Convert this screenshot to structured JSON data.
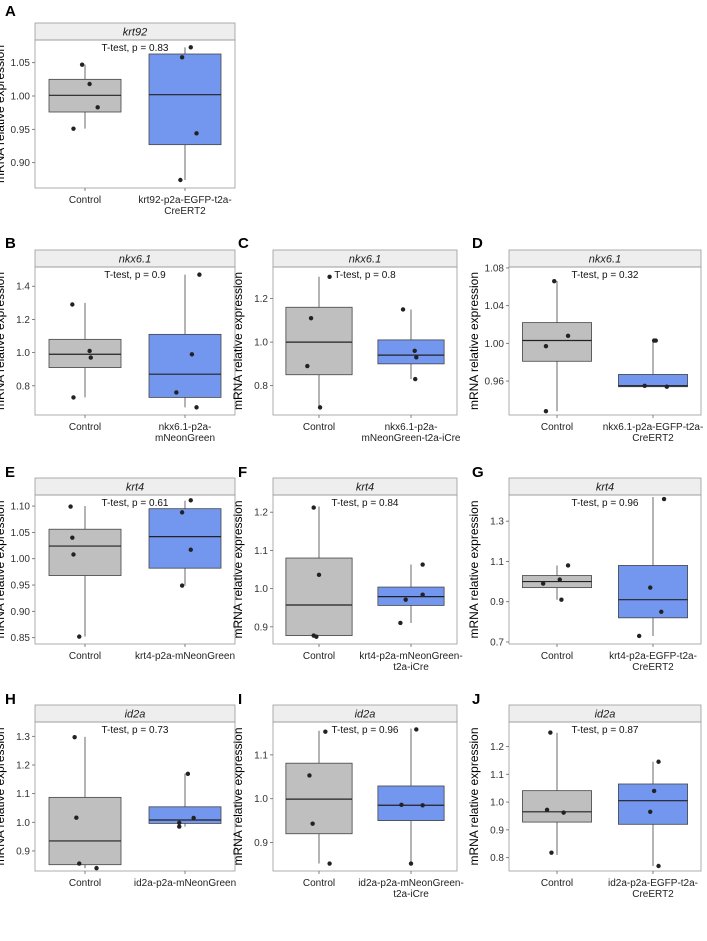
{
  "figure": {
    "colors": {
      "control": "#bfbfbf",
      "transgenic": "#7396ee"
    }
  },
  "chart_data": [
    {
      "panel": "A",
      "type": "box",
      "title": "krt92",
      "annotation": "T-test, p = 0.83",
      "ylabel": "mRNA relative expression",
      "ylim": [
        0.862,
        1.084
      ],
      "yticks": [
        0.9,
        0.95,
        1.0,
        1.05
      ],
      "ytick_labels": [
        "0.90",
        "0.95",
        "1.00",
        "1.05"
      ],
      "categories": [
        "Control",
        "krt92-p2a-EGFP-t2a-\nCreERT2"
      ],
      "boxes": [
        {
          "whislo": 0.951,
          "q1": 0.976,
          "med": 1.001,
          "q3": 1.025,
          "whishi": 1.047
        },
        {
          "whislo": 0.874,
          "q1": 0.927,
          "med": 1.002,
          "q3": 1.063,
          "whishi": 1.073
        }
      ],
      "points": [
        [
          [
            -0.05,
            1.047
          ],
          [
            0.08,
            1.018
          ],
          [
            0.22,
            0.983
          ],
          [
            -0.2,
            0.951
          ]
        ],
        [
          [
            0.1,
            1.073
          ],
          [
            -0.05,
            1.058
          ],
          [
            0.2,
            0.944
          ],
          [
            -0.08,
            0.874
          ]
        ]
      ]
    },
    {
      "panel": "B",
      "type": "box",
      "title": "nkx6.1",
      "annotation": "T-test, p = 0.9",
      "ylabel": "mRNA relative expression",
      "ylim": [
        0.624,
        1.516
      ],
      "yticks": [
        0.8,
        1.0,
        1.2,
        1.4
      ],
      "ytick_labels": [
        "0.8",
        "1.0",
        "1.2",
        "1.4"
      ],
      "categories": [
        "Control",
        "nkx6.1-p2a-\nmNeonGreen"
      ],
      "boxes": [
        {
          "whislo": 0.73,
          "q1": 0.91,
          "med": 0.99,
          "q3": 1.08,
          "whishi": 1.3
        },
        {
          "whislo": 0.67,
          "q1": 0.73,
          "med": 0.87,
          "q3": 1.11,
          "whishi": 1.47
        }
      ],
      "points": [
        [
          [
            -0.22,
            1.29
          ],
          [
            0.08,
            1.01
          ],
          [
            0.1,
            0.97
          ],
          [
            -0.2,
            0.73
          ]
        ],
        [
          [
            0.25,
            1.47
          ],
          [
            0.12,
            0.99
          ],
          [
            -0.15,
            0.76
          ],
          [
            0.2,
            0.67
          ]
        ]
      ]
    },
    {
      "panel": "C",
      "type": "box",
      "title": "nkx6.1",
      "annotation": "T-test, p = 0.8",
      "ylabel": "mRNA relative expression",
      "ylim": [
        0.665,
        1.345
      ],
      "yticks": [
        0.8,
        1.0,
        1.2
      ],
      "ytick_labels": [
        "0.8",
        "1.0",
        "1.2"
      ],
      "categories": [
        "Control",
        "nkx6.1-p2a-\nmNeonGreen-t2a-iCre"
      ],
      "boxes": [
        {
          "whislo": 0.7,
          "q1": 0.85,
          "med": 1.0,
          "q3": 1.16,
          "whishi": 1.3
        },
        {
          "whislo": 0.83,
          "q1": 0.9,
          "med": 0.94,
          "q3": 1.01,
          "whishi": 1.15
        }
      ],
      "points": [
        [
          [
            0.2,
            1.3
          ],
          [
            -0.15,
            1.11
          ],
          [
            -0.22,
            0.89
          ],
          [
            0.02,
            0.7
          ]
        ],
        [
          [
            -0.15,
            1.15
          ],
          [
            0.07,
            0.96
          ],
          [
            0.1,
            0.93
          ],
          [
            0.08,
            0.83
          ]
        ]
      ]
    },
    {
      "panel": "D",
      "type": "box",
      "title": "nkx6.1",
      "annotation": "T-test, p = 0.32",
      "ylabel": "mRNA relative expression",
      "ylim": [
        0.924,
        1.081
      ],
      "yticks": [
        0.96,
        1.0,
        1.04,
        1.08
      ],
      "ytick_labels": [
        "0.96",
        "1.00",
        "1.04",
        "1.08"
      ],
      "categories": [
        "Control",
        "nkx6.1-p2a-EGFP-t2a-\nCreERT2"
      ],
      "boxes": [
        {
          "whislo": 0.928,
          "q1": 0.981,
          "med": 1.003,
          "q3": 1.022,
          "whishi": 1.066
        },
        {
          "whislo": 0.954,
          "q1": 0.954,
          "med": 0.955,
          "q3": 0.967,
          "whishi": 1.003
        }
      ],
      "points": [
        [
          [
            -0.05,
            1.066
          ],
          [
            0.2,
            1.008
          ],
          [
            -0.2,
            0.997
          ],
          [
            -0.2,
            0.928
          ]
        ],
        [
          [
            0.02,
            1.003
          ],
          [
            0.05,
            1.003
          ],
          [
            -0.15,
            0.955
          ],
          [
            0.25,
            0.954
          ]
        ]
      ]
    },
    {
      "panel": "E",
      "type": "box",
      "title": "krt4",
      "annotation": "T-test, p = 0.61",
      "ylabel": "mRNA relative expression",
      "ylim": [
        0.838,
        1.121
      ],
      "yticks": [
        0.85,
        0.9,
        0.95,
        1.0,
        1.05,
        1.1
      ],
      "ytick_labels": [
        "0.85",
        "0.90",
        "0.95",
        "1.00",
        "1.05",
        "1.10"
      ],
      "categories": [
        "Control",
        "krt4-p2a-mNeonGreen"
      ],
      "boxes": [
        {
          "whislo": 0.852,
          "q1": 0.968,
          "med": 1.024,
          "q3": 1.056,
          "whishi": 1.1
        },
        {
          "whislo": 0.949,
          "q1": 0.982,
          "med": 1.042,
          "q3": 1.095,
          "whishi": 1.11
        }
      ],
      "points": [
        [
          [
            -0.25,
            1.099
          ],
          [
            -0.22,
            1.04
          ],
          [
            -0.2,
            1.008
          ],
          [
            -0.1,
            0.852
          ]
        ],
        [
          [
            0.1,
            1.111
          ],
          [
            -0.05,
            1.088
          ],
          [
            0.1,
            1.017
          ],
          [
            -0.05,
            0.949
          ]
        ]
      ]
    },
    {
      "panel": "F",
      "type": "box",
      "title": "krt4",
      "annotation": "T-test, p = 0.84",
      "ylabel": "mRNA relative expression",
      "ylim": [
        0.855,
        1.245
      ],
      "yticks": [
        0.9,
        1.0,
        1.1,
        1.2
      ],
      "ytick_labels": [
        "0.9",
        "1.0",
        "1.1",
        "1.2"
      ],
      "categories": [
        "Control",
        "krt4-p2a-mNeonGreen-\nt2a-iCre"
      ],
      "boxes": [
        {
          "whislo": 0.876,
          "q1": 0.877,
          "med": 0.957,
          "q3": 1.08,
          "whishi": 1.215
        },
        {
          "whislo": 0.91,
          "q1": 0.956,
          "med": 0.979,
          "q3": 1.004,
          "whishi": 1.063
        }
      ],
      "points": [
        [
          [
            -0.1,
            1.212
          ],
          [
            0.0,
            1.036
          ],
          [
            -0.1,
            0.877
          ],
          [
            -0.05,
            0.874
          ]
        ],
        [
          [
            0.22,
            1.063
          ],
          [
            0.22,
            0.984
          ],
          [
            -0.1,
            0.971
          ],
          [
            -0.2,
            0.91
          ]
        ]
      ]
    },
    {
      "panel": "G",
      "type": "box",
      "title": "krt4",
      "annotation": "T-test, p = 0.96",
      "ylabel": "mRNA relative expression",
      "ylim": [
        0.69,
        1.43
      ],
      "yticks": [
        0.7,
        0.9,
        1.1,
        1.3
      ],
      "ytick_labels": [
        "0.7",
        "0.9",
        "1.1",
        "1.3"
      ],
      "categories": [
        "Control",
        "krt4-p2a-EGFP-t2a-\nCreERT2"
      ],
      "boxes": [
        {
          "whislo": 0.91,
          "q1": 0.97,
          "med": 1.0,
          "q3": 1.03,
          "whishi": 1.08
        },
        {
          "whislo": 0.73,
          "q1": 0.82,
          "med": 0.91,
          "q3": 1.08,
          "whishi": 1.42
        }
      ],
      "points": [
        [
          [
            0.2,
            1.08
          ],
          [
            0.05,
            1.01
          ],
          [
            -0.25,
            0.99
          ],
          [
            0.08,
            0.91
          ]
        ],
        [
          [
            0.2,
            1.41
          ],
          [
            -0.05,
            0.97
          ],
          [
            0.15,
            0.85
          ],
          [
            -0.25,
            0.73
          ]
        ]
      ]
    },
    {
      "panel": "H",
      "type": "box",
      "title": "id2a",
      "annotation": "T-test, p = 0.73",
      "ylabel": "mRNA relative expression",
      "ylim": [
        0.83,
        1.35
      ],
      "yticks": [
        0.9,
        1.0,
        1.1,
        1.2,
        1.3
      ],
      "ytick_labels": [
        "0.9",
        "1.0",
        "1.1",
        "1.2",
        "1.3"
      ],
      "categories": [
        "Control",
        "id2a-p2a-mNeonGreen"
      ],
      "boxes": [
        {
          "whislo": 0.84,
          "q1": 0.852,
          "med": 0.935,
          "q3": 1.087,
          "whishi": 1.298
        },
        {
          "whislo": 0.985,
          "q1": 0.996,
          "med": 1.008,
          "q3": 1.054,
          "whishi": 1.17
        }
      ],
      "points": [
        [
          [
            -0.18,
            1.297
          ],
          [
            -0.15,
            1.016
          ],
          [
            -0.1,
            0.856
          ],
          [
            0.2,
            0.84
          ]
        ],
        [
          [
            0.05,
            1.169
          ],
          [
            0.15,
            1.015
          ],
          [
            -0.1,
            0.998
          ],
          [
            -0.1,
            0.985
          ]
        ]
      ]
    },
    {
      "panel": "I",
      "type": "box",
      "title": "id2a",
      "annotation": "T-test, p = 0.96",
      "ylabel": "mRNA relative expression",
      "ylim": [
        0.835,
        1.175
      ],
      "yticks": [
        0.9,
        1.0,
        1.1
      ],
      "ytick_labels": [
        "0.9",
        "1.0",
        "1.1"
      ],
      "categories": [
        "Control",
        "id2a-p2a-mNeonGreen-\nt2a-iCre"
      ],
      "boxes": [
        {
          "whislo": 0.852,
          "q1": 0.92,
          "med": 0.999,
          "q3": 1.081,
          "whishi": 1.155
        },
        {
          "whislo": 0.852,
          "q1": 0.95,
          "med": 0.985,
          "q3": 1.029,
          "whishi": 1.16
        }
      ],
      "points": [
        [
          [
            0.12,
            1.153
          ],
          [
            -0.18,
            1.053
          ],
          [
            -0.12,
            0.943
          ],
          [
            0.2,
            0.852
          ]
        ],
        [
          [
            0.1,
            1.158
          ],
          [
            -0.18,
            0.986
          ],
          [
            0.22,
            0.985
          ],
          [
            0.0,
            0.852
          ]
        ]
      ]
    },
    {
      "panel": "J",
      "type": "box",
      "title": "id2a",
      "annotation": "T-test, p = 0.87",
      "ylabel": "mRNA relative expression",
      "ylim": [
        0.752,
        1.288
      ],
      "yticks": [
        0.8,
        0.9,
        1.0,
        1.1,
        1.2
      ],
      "ytick_labels": [
        "0.8",
        "0.9",
        "1.0",
        "1.1",
        "1.2"
      ],
      "categories": [
        "Control",
        "id2a-p2a-EGFP-t2a-\nCreERT2"
      ],
      "boxes": [
        {
          "whislo": 0.81,
          "q1": 0.928,
          "med": 0.965,
          "q3": 1.041,
          "whishi": 1.249
        },
        {
          "whislo": 0.77,
          "q1": 0.92,
          "med": 1.005,
          "q3": 1.065,
          "whishi": 1.145
        }
      ],
      "points": [
        [
          [
            -0.12,
            1.25
          ],
          [
            -0.18,
            0.972
          ],
          [
            0.12,
            0.962
          ],
          [
            -0.1,
            0.818
          ]
        ],
        [
          [
            0.1,
            1.145
          ],
          [
            0.02,
            1.04
          ],
          [
            -0.05,
            0.965
          ],
          [
            0.1,
            0.77
          ]
        ]
      ]
    }
  ]
}
